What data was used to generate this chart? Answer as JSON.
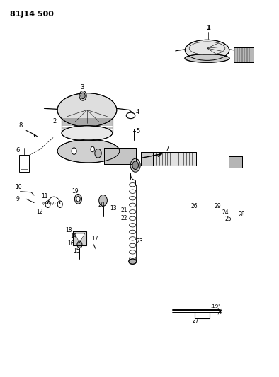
{
  "title": "81J14 500",
  "bg_color": "#ffffff",
  "line_color": "#000000",
  "text_color": "#000000",
  "fig_width": 3.94,
  "fig_height": 5.33,
  "dpi": 100
}
